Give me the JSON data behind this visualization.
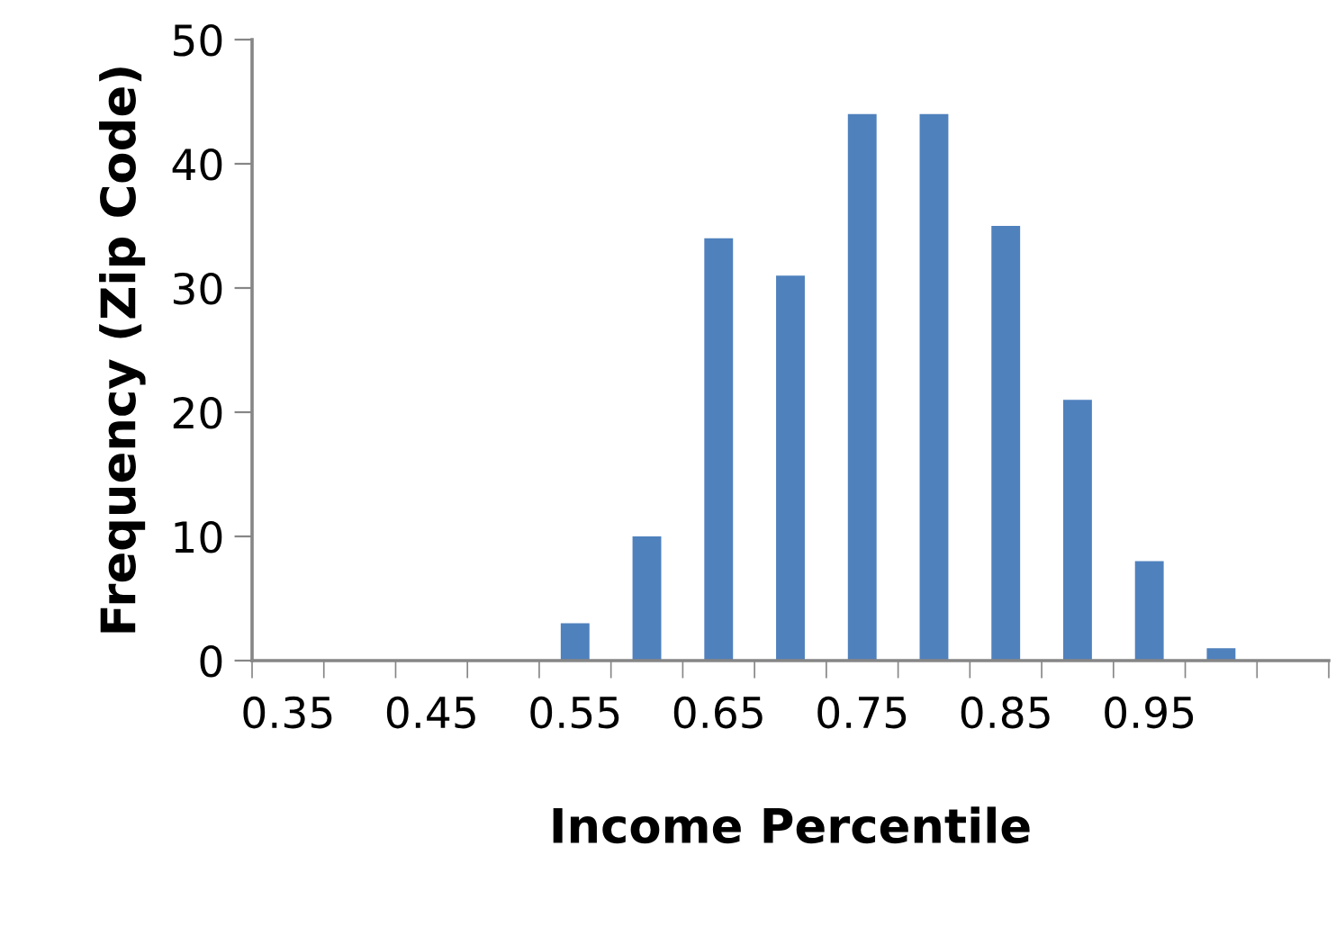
{
  "chart_data": {
    "type": "bar",
    "categories": [
      "0.35",
      null,
      "0.45",
      null,
      "0.55",
      null,
      "0.65",
      null,
      "0.75",
      null,
      "0.85",
      null,
      "0.95",
      null,
      null
    ],
    "values": [
      0,
      0,
      0,
      0,
      3,
      10,
      34,
      31,
      44,
      44,
      35,
      21,
      8,
      1,
      0
    ],
    "color": "#4f81bd",
    "xlabel": "Income Percentile",
    "ylabel": "Frequency (Zip Code)",
    "ylim": [
      0,
      50
    ],
    "yticks": [
      0,
      10,
      20,
      30,
      40,
      50
    ],
    "grid": false,
    "legend": false
  }
}
